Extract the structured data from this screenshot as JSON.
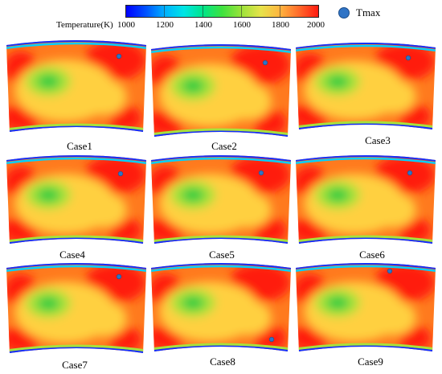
{
  "colorbar": {
    "title": "Temperature(K)",
    "ticks": [
      "1000",
      "1200",
      "1400",
      "1600",
      "1800",
      "2000"
    ]
  },
  "legend": {
    "label": "Tmax",
    "marker_color": "#2f74c6"
  },
  "colors": {
    "hot": "#ff1a10",
    "warm": "#ff7a1e",
    "mid": "#ffd040",
    "cool": "#a6e23c",
    "cold": "#2ecc40",
    "edge_blue": "#1030ff",
    "edge_cyan": "#00d0ff"
  },
  "cases": [
    {
      "label": "Case1"
    },
    {
      "label": "Case2"
    },
    {
      "label": "Case3"
    },
    {
      "label": "Case4"
    },
    {
      "label": "Case5"
    },
    {
      "label": "Case6"
    },
    {
      "label": "Case7"
    },
    {
      "label": "Case8"
    },
    {
      "label": "Case9"
    }
  ]
}
